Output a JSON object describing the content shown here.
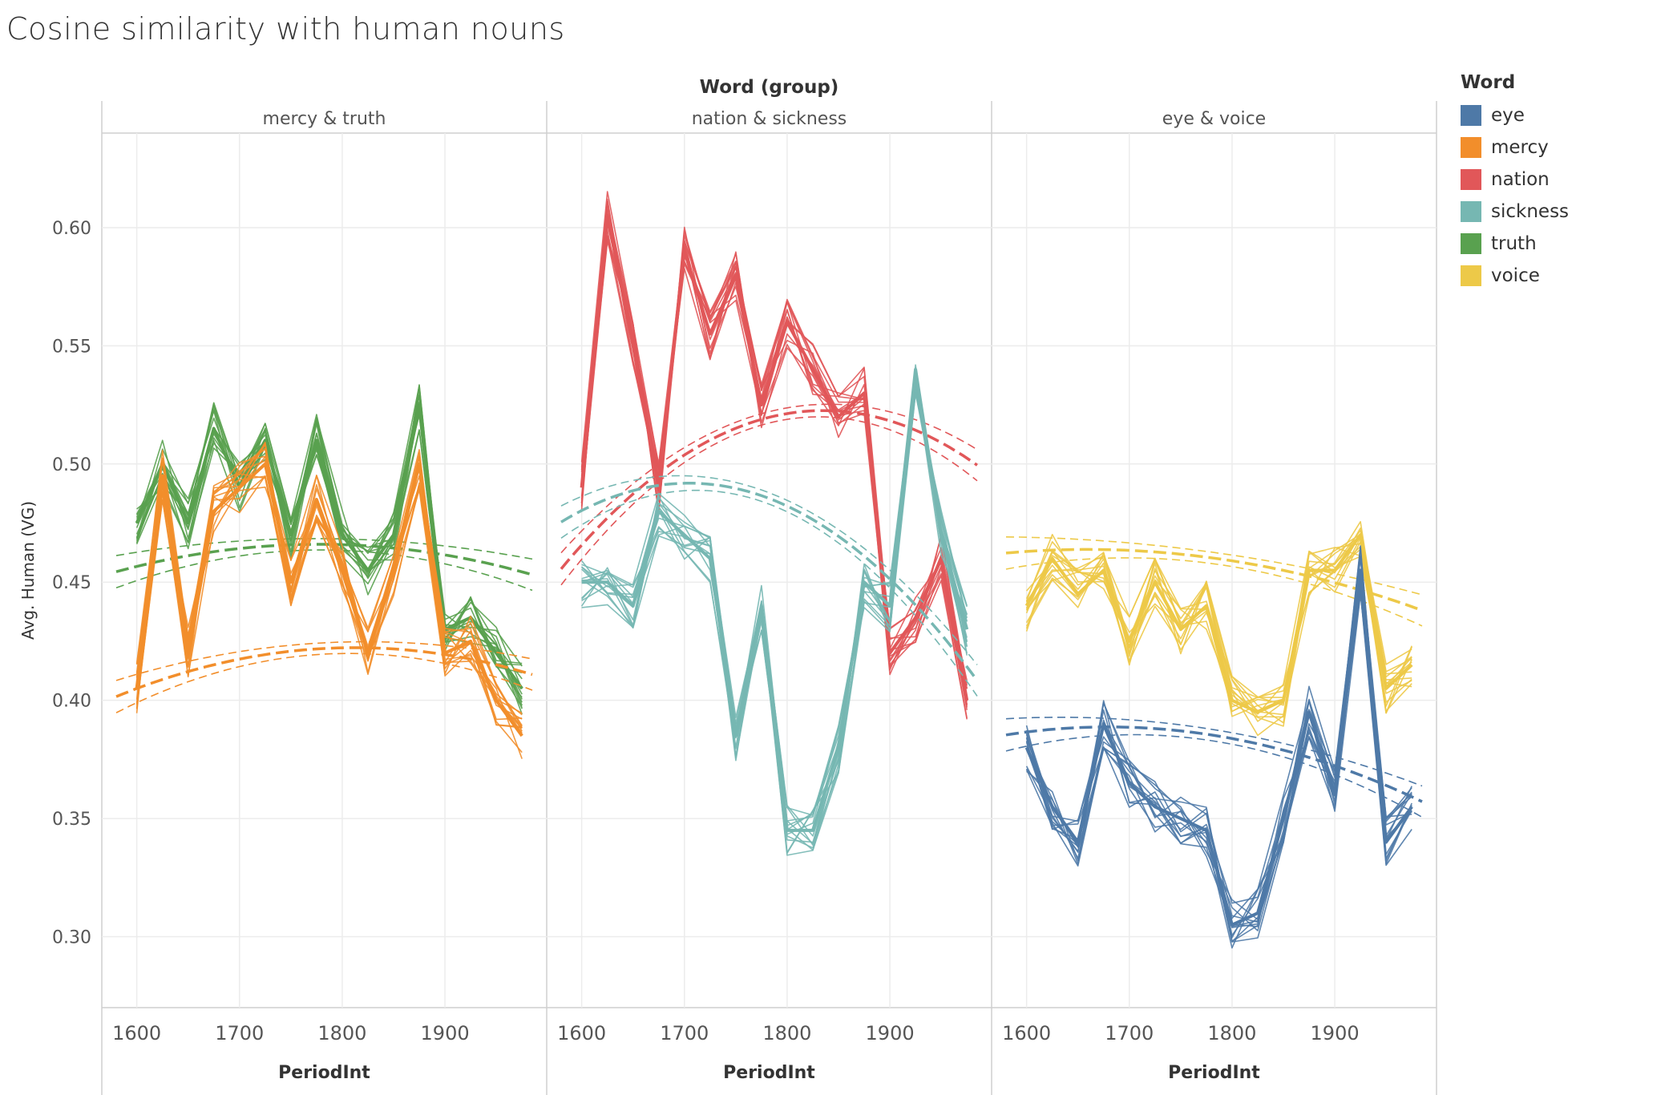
{
  "chart_data": {
    "type": "line",
    "title": "Cosine similarity with human nouns",
    "column_header": "Word (group)",
    "ylabel": "Avg. Human (VG)",
    "xlabel": "PeriodInt",
    "ylim": [
      0.27,
      0.64
    ],
    "yticks": [
      0.3,
      0.35,
      0.4,
      0.45,
      0.5,
      0.55,
      0.6
    ],
    "xlim": [
      1580,
      1985
    ],
    "xticks": [
      1600,
      1700,
      1800,
      1900
    ],
    "grid": true,
    "legend": {
      "title": "Word",
      "placement": "right",
      "items": [
        {
          "label": "eye",
          "color": "#4e79a7"
        },
        {
          "label": "mercy",
          "color": "#f28e2b"
        },
        {
          "label": "nation",
          "color": "#e15759"
        },
        {
          "label": "sickness",
          "color": "#76b7b2"
        },
        {
          "label": "truth",
          "color": "#59a14f"
        },
        {
          "label": "voice",
          "color": "#edc948"
        }
      ]
    },
    "x": [
      1600,
      1625,
      1650,
      1675,
      1700,
      1725,
      1750,
      1775,
      1800,
      1825,
      1850,
      1875,
      1900,
      1925,
      1950,
      1975
    ],
    "panels": [
      {
        "label": "mercy & truth",
        "series": [
          {
            "name": "truth",
            "color": "#59a14f",
            "values": [
              0.475,
              0.5,
              0.475,
              0.515,
              0.49,
              0.51,
              0.47,
              0.51,
              0.47,
              0.455,
              0.47,
              0.525,
              0.43,
              0.435,
              0.42,
              0.405
            ],
            "trend": [
              0.466,
              -0.00085,
              0.0102
            ]
          },
          {
            "name": "mercy",
            "color": "#f28e2b",
            "values": [
              0.405,
              0.495,
              0.42,
              0.48,
              0.49,
              0.5,
              0.45,
              0.485,
              0.455,
              0.42,
              0.455,
              0.5,
              0.42,
              0.425,
              0.4,
              0.385
            ],
            "trend": [
              0.422,
              0.0039,
              0.0131
            ]
          }
        ]
      },
      {
        "label": "nation & sickness",
        "series": [
          {
            "name": "nation",
            "color": "#e15759",
            "values": [
              0.49,
              0.605,
              0.55,
              0.49,
              0.59,
              0.555,
              0.58,
              0.525,
              0.56,
              0.54,
              0.52,
              0.53,
              0.42,
              0.435,
              0.46,
              0.4
            ],
            "trend": [
              0.52,
              0.0191,
              0.0352
            ]
          },
          {
            "name": "sickness",
            "color": "#76b7b2",
            "values": [
              0.45,
              0.45,
              0.44,
              0.48,
              0.47,
              0.46,
              0.385,
              0.44,
              0.345,
              0.345,
              0.38,
              0.45,
              0.44,
              0.54,
              0.47,
              0.43
            ],
            "trend": [
              0.485,
              -0.0316,
              0.0363
            ]
          }
        ]
      },
      {
        "label": "eye & voice",
        "series": [
          {
            "name": "voice",
            "color": "#edc948",
            "values": [
              0.44,
              0.46,
              0.445,
              0.455,
              0.425,
              0.45,
              0.43,
              0.44,
              0.4,
              0.395,
              0.4,
              0.455,
              0.455,
              0.47,
              0.405,
              0.415
            ],
            "trend": [
              0.46,
              -0.0113,
              0.0083
            ]
          },
          {
            "name": "eye",
            "color": "#4e79a7",
            "values": [
              0.38,
              0.355,
              0.34,
              0.39,
              0.365,
              0.355,
              0.35,
              0.345,
              0.305,
              0.31,
              0.35,
              0.395,
              0.36,
              0.455,
              0.34,
              0.355
            ],
            "trend": [
              0.385,
              -0.0132,
              0.0116
            ]
          }
        ]
      }
    ]
  }
}
